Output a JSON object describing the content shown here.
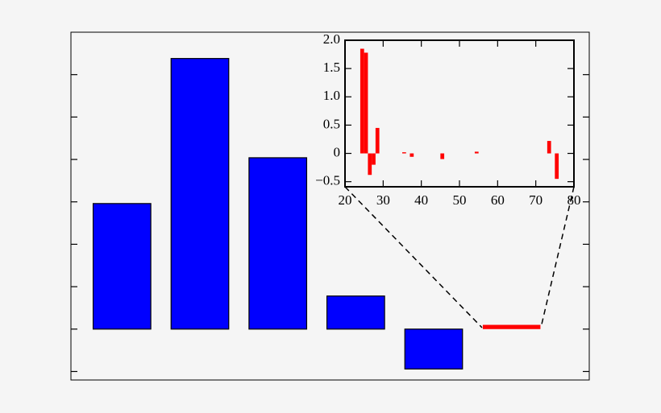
{
  "chart_data": [
    {
      "type": "bar",
      "categories": [
        null,
        null,
        null,
        null,
        null,
        null
      ],
      "values": [
        1.48,
        3.19,
        2.02,
        0.39,
        -0.47,
        0.05
      ],
      "colors": [
        "#0000ff",
        "#0000ff",
        "#0000ff",
        "#0000ff",
        "#0000ff",
        "#ff0000"
      ],
      "ylim": [
        -0.6,
        3.5
      ],
      "yticks": [
        -0.5,
        0,
        0.5,
        1,
        1.5,
        2,
        2.5,
        3
      ]
    },
    {
      "type": "bar",
      "x": [
        24.5,
        25.5,
        26.5,
        27.5,
        28.5,
        35.5,
        37.5,
        45.5,
        54.5,
        73.5,
        75.5
      ],
      "values": [
        1.85,
        1.78,
        -0.38,
        -0.2,
        0.45,
        0.02,
        -0.06,
        -0.1,
        0.03,
        0.22,
        -0.45
      ],
      "color": "#ff0000",
      "xlim": [
        20,
        80
      ],
      "xticks": [
        20,
        30,
        40,
        50,
        60,
        70,
        80
      ],
      "ylim": [
        -0.59,
        2.0
      ],
      "yticks": [
        {
          "value": -0.5,
          "label": "−0.5"
        },
        0,
        0.5,
        {
          "value": 1.0,
          "label": "1.0"
        },
        1.5,
        {
          "value": 2.0,
          "label": "2.0"
        }
      ]
    }
  ]
}
